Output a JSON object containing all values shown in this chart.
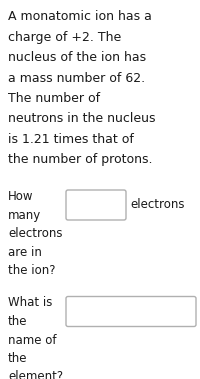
{
  "background_color": "#ffffff",
  "text_color": "#1a1a1a",
  "box_color": "#ffffff",
  "box_edge_color": "#b0b0b0",
  "para_lines": [
    "A monatomic ion has a",
    "charge of +2. The",
    "nucleus of the ion has",
    "a mass number of 62.",
    "The number of",
    "neutrons in the nucleus",
    "is 1.21 times that of",
    "the number of protons."
  ],
  "q1_lines": [
    "How",
    "many",
    "electrons",
    "are in",
    "the ion?"
  ],
  "q1_suffix": "electrons",
  "q2_lines": [
    "What is",
    "the",
    "name of",
    "the",
    "element?"
  ],
  "font_size_para": 9.0,
  "font_size_q": 8.5,
  "fig_width": 2.0,
  "fig_height": 3.79,
  "dpi": 100
}
